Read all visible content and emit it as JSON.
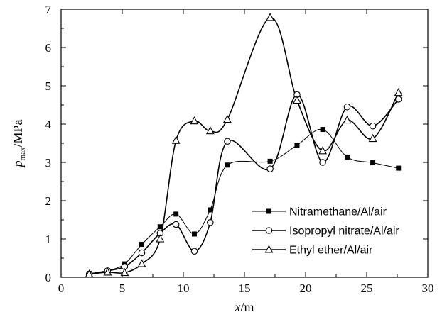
{
  "chart_data": {
    "type": "scatter",
    "xlabel": {
      "italic": "x",
      "unit": "/m"
    },
    "ylabel": {
      "italic": "p",
      "subscript": "max",
      "unit": "/MPa"
    },
    "xlim": [
      0,
      30
    ],
    "ylim": [
      0,
      7
    ],
    "xticks": [
      0,
      5,
      10,
      15,
      20,
      25,
      30
    ],
    "yticks": [
      0,
      1,
      2,
      3,
      4,
      5,
      6,
      7
    ],
    "grid": false,
    "legend_position": "lower-right",
    "series": [
      {
        "name": "Nitramethane/Al/air",
        "marker": "square-filled",
        "color": "#000000",
        "x": [
          2.3,
          3.8,
          5.2,
          6.6,
          8.1,
          9.4,
          10.9,
          12.2,
          13.6,
          17.1,
          19.3,
          21.4,
          23.4,
          25.5,
          27.6
        ],
        "y": [
          0.1,
          0.17,
          0.35,
          0.86,
          1.32,
          1.65,
          1.13,
          1.76,
          2.93,
          3.03,
          3.45,
          3.86,
          3.14,
          2.99,
          2.85
        ]
      },
      {
        "name": "Isopropyl nitrate/Al/air",
        "marker": "circle-open",
        "color": "#000000",
        "x": [
          2.3,
          3.8,
          5.2,
          6.6,
          8.1,
          9.4,
          10.9,
          12.2,
          13.6,
          17.1,
          19.3,
          21.4,
          23.4,
          25.5,
          27.6
        ],
        "y": [
          0.08,
          0.17,
          0.28,
          0.64,
          1.15,
          1.38,
          0.68,
          1.43,
          3.55,
          2.83,
          4.77,
          3.0,
          4.45,
          3.95,
          4.65
        ]
      },
      {
        "name": "Ethyl ether/Al/air",
        "marker": "triangle-open",
        "color": "#000000",
        "x": [
          2.3,
          3.8,
          5.2,
          6.6,
          8.1,
          9.4,
          10.9,
          12.2,
          13.6,
          17.1,
          19.3,
          21.4,
          23.4,
          25.5,
          27.6
        ],
        "y": [
          0.08,
          0.13,
          0.12,
          0.35,
          1.0,
          3.57,
          4.08,
          3.82,
          4.12,
          6.78,
          4.62,
          3.3,
          4.1,
          3.62,
          4.82
        ]
      }
    ]
  }
}
